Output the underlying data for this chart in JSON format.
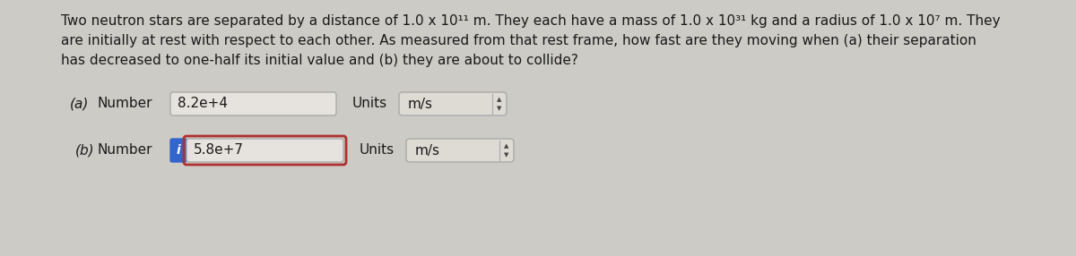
{
  "background_color": "#cccbc6",
  "text_color": "#1a1a1a",
  "line1": "Two neutron stars are separated by a distance of 1.0 x 10¹¹ m. They each have a mass of 1.0 x 10³¹ kg and a radius of 1.0 x 10⁷ m. They",
  "line2": "are initially at rest with respect to each other. As measured from that rest frame, how fast are they moving when (a) their separation",
  "line3": "has decreased to one-half its initial value and (b) they are about to collide?",
  "part_a_label": "(a)",
  "part_a_number": "Number",
  "part_a_value": "8.2e+4",
  "part_a_units": "Units",
  "part_a_units_value": "m/s",
  "part_b_label": "(b)",
  "part_b_number": "Number",
  "part_b_value": "5.8e+7",
  "part_b_units": "Units",
  "part_b_units_value": "m/s",
  "input_bg": "#e6e3de",
  "input_border": "#aaaaaa",
  "input_border_b_red": "#b03030",
  "info_icon_bg": "#3366cc",
  "units_bg": "#dedad4",
  "units_border": "#aaaaaa",
  "font_size": 11.0,
  "label_font_size": 11.0
}
